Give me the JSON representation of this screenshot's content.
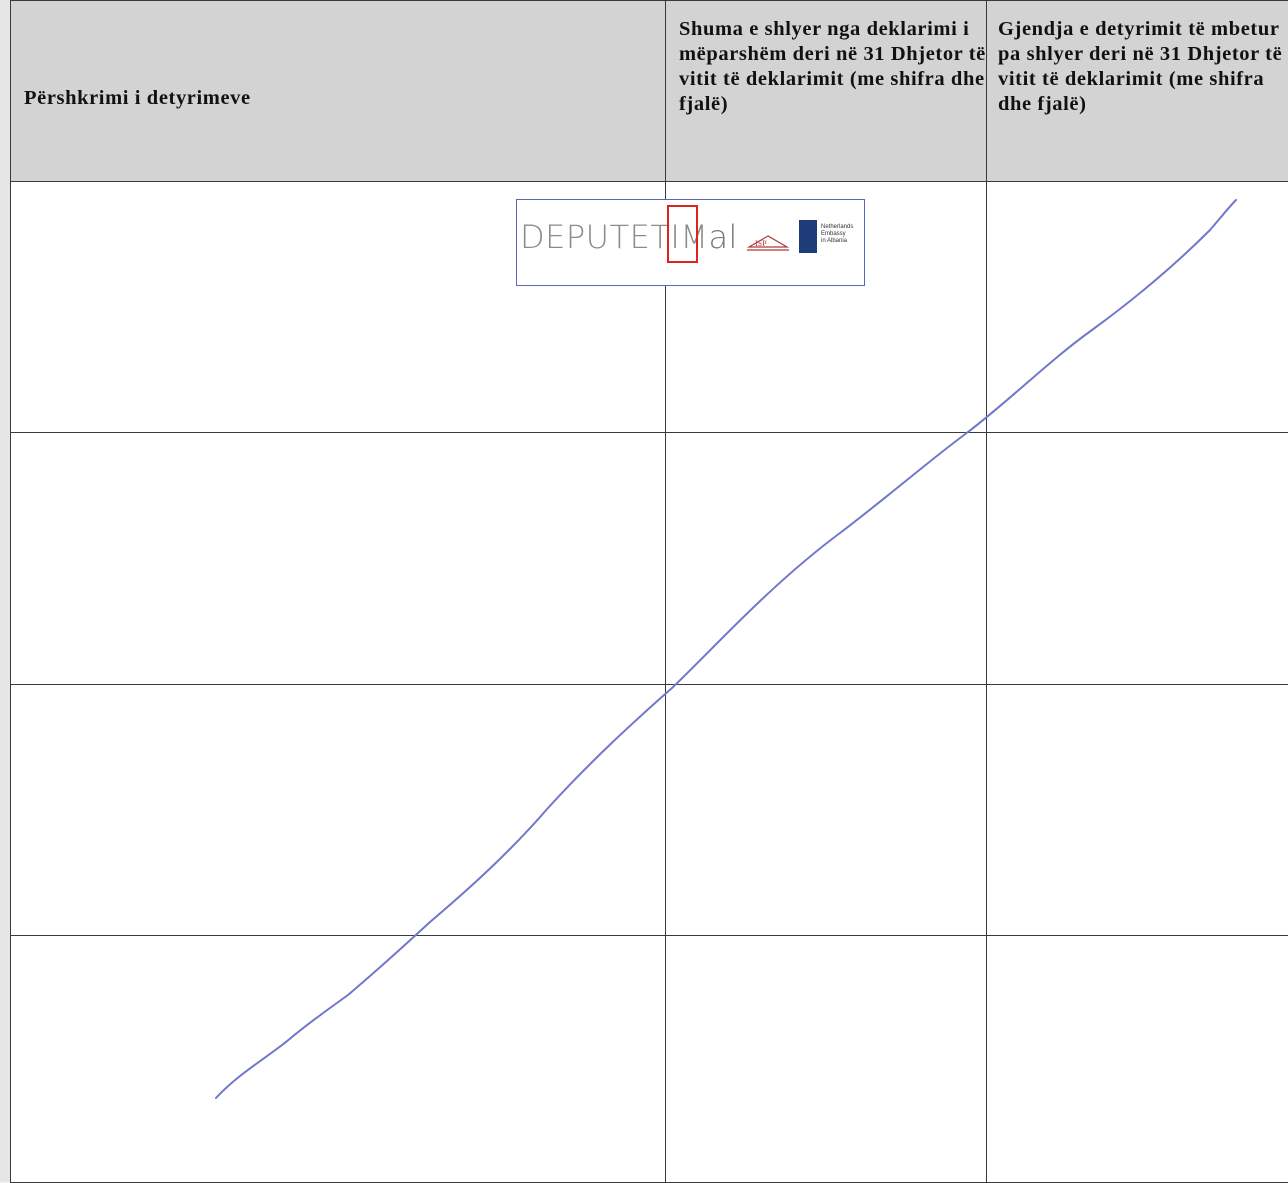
{
  "table": {
    "headers": [
      "Përshkrimi i detyrimeve",
      "Shuma e shlyer nga deklarimi i mëparshëm deri në 31 Dhjetor të vitit të deklarimit (me shifra dhe fjalë)",
      "Gjendja e detyrimit të mbetur pa shlyer deri në 31 Dhjetor të vitit të deklarimit (me shifra dhe fjalë)"
    ],
    "rows": [
      [
        "",
        "",
        ""
      ],
      [
        "",
        "",
        ""
      ],
      [
        "",
        "",
        ""
      ],
      [
        "",
        "",
        ""
      ]
    ]
  },
  "stamp": {
    "logo_main": "DEPUTETIM",
    "logo_domain": "al",
    "partner_logo_text": "ISP",
    "embassy_text": [
      "Netherlands",
      "Embassy",
      "in Albania"
    ]
  },
  "colors": {
    "header_fill": "#d3d3d3",
    "strike_line": "#6f78c9",
    "stamp_border": "#5a66b8",
    "stamp_red": "#d92424"
  }
}
